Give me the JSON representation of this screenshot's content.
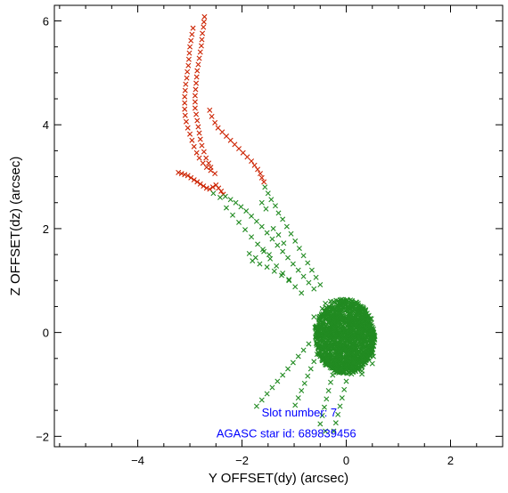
{
  "chart_data": {
    "type": "scatter",
    "title": "",
    "xlabel": "Y OFFSET(dy) (arcsec)",
    "ylabel": "Z OFFSET(dz) (arcsec)",
    "xlim": [
      -5.6,
      3.0
    ],
    "ylim": [
      -2.2,
      6.3
    ],
    "x_ticks": [
      -4,
      -2,
      0,
      2
    ],
    "y_ticks": [
      -2,
      0,
      2,
      4,
      6
    ],
    "marker": "x",
    "grid": false,
    "annotations": [
      {
        "text": "Slot number: 7",
        "x": -0.9,
        "y": -1.62
      },
      {
        "text": "AGASC star id: 689839456",
        "x": -1.15,
        "y": -2.02
      }
    ],
    "series": [
      {
        "color": "#cc2200",
        "points": [
          [
            -2.72,
            6.08
          ],
          [
            -2.73,
            5.98
          ],
          [
            -2.74,
            5.88
          ],
          [
            -2.76,
            5.76
          ],
          [
            -2.77,
            5.64
          ],
          [
            -2.78,
            5.52
          ],
          [
            -2.8,
            5.4
          ],
          [
            -2.82,
            5.28
          ],
          [
            -2.84,
            5.16
          ],
          [
            -2.86,
            5.04
          ],
          [
            -2.87,
            4.92
          ],
          [
            -2.88,
            4.8
          ],
          [
            -2.89,
            4.68
          ],
          [
            -2.9,
            4.56
          ],
          [
            -2.9,
            4.44
          ],
          [
            -2.9,
            4.32
          ],
          [
            -2.88,
            4.2
          ],
          [
            -2.86,
            4.08
          ],
          [
            -2.84,
            3.96
          ],
          [
            -2.82,
            3.84
          ],
          [
            -2.8,
            3.72
          ],
          [
            -2.77,
            3.6
          ],
          [
            -2.73,
            3.48
          ],
          [
            -2.69,
            3.36
          ],
          [
            -2.64,
            3.26
          ],
          [
            -2.6,
            3.18
          ],
          [
            -2.94,
            5.86
          ],
          [
            -2.96,
            5.74
          ],
          [
            -2.98,
            5.62
          ],
          [
            -3.0,
            5.5
          ],
          [
            -3.01,
            5.38
          ],
          [
            -3.02,
            5.26
          ],
          [
            -3.03,
            5.14
          ],
          [
            -3.05,
            5.02
          ],
          [
            -3.06,
            4.9
          ],
          [
            -3.08,
            4.78
          ],
          [
            -3.09,
            4.66
          ],
          [
            -3.1,
            4.54
          ],
          [
            -3.1,
            4.42
          ],
          [
            -3.1,
            4.3
          ],
          [
            -3.09,
            4.18
          ],
          [
            -3.07,
            4.06
          ],
          [
            -3.04,
            3.94
          ],
          [
            -3.0,
            3.82
          ],
          [
            -2.96,
            3.7
          ],
          [
            -2.92,
            3.58
          ],
          [
            -2.87,
            3.46
          ],
          [
            -2.82,
            3.36
          ],
          [
            -2.75,
            3.26
          ],
          [
            -2.68,
            3.18
          ],
          [
            -2.6,
            3.12
          ],
          [
            -2.52,
            3.06
          ],
          [
            -2.62,
            4.28
          ],
          [
            -2.58,
            4.16
          ],
          [
            -2.52,
            4.04
          ],
          [
            -2.46,
            3.94
          ],
          [
            -2.38,
            3.86
          ],
          [
            -2.3,
            3.78
          ],
          [
            -2.22,
            3.7
          ],
          [
            -2.14,
            3.62
          ],
          [
            -2.06,
            3.54
          ],
          [
            -1.98,
            3.46
          ],
          [
            -1.9,
            3.38
          ],
          [
            -1.82,
            3.3
          ],
          [
            -1.76,
            3.22
          ],
          [
            -1.7,
            3.14
          ],
          [
            -1.65,
            3.06
          ],
          [
            -1.62,
            2.98
          ],
          [
            -1.58,
            2.9
          ],
          [
            -3.22,
            3.08
          ],
          [
            -3.16,
            3.06
          ],
          [
            -3.1,
            3.04
          ],
          [
            -3.04,
            3.02
          ],
          [
            -2.98,
            2.98
          ],
          [
            -2.92,
            2.94
          ],
          [
            -2.86,
            2.9
          ],
          [
            -2.8,
            2.86
          ],
          [
            -2.74,
            2.82
          ],
          [
            -2.68,
            2.78
          ],
          [
            -2.62,
            2.76
          ],
          [
            -2.56,
            2.8
          ],
          [
            -2.5,
            2.84
          ],
          [
            -2.45,
            2.78
          ],
          [
            -2.4,
            2.72
          ],
          [
            -2.36,
            2.66
          ]
        ]
      },
      {
        "color": "#228b22",
        "points": [
          [
            -2.32,
            2.62
          ],
          [
            -2.22,
            2.56
          ],
          [
            -2.12,
            2.5
          ],
          [
            -2.02,
            2.42
          ],
          [
            -1.92,
            2.34
          ],
          [
            -1.82,
            2.24
          ],
          [
            -1.72,
            2.14
          ],
          [
            -1.62,
            2.04
          ],
          [
            -1.52,
            1.92
          ],
          [
            -1.42,
            1.8
          ],
          [
            -1.32,
            1.68
          ],
          [
            -1.22,
            1.56
          ],
          [
            -1.12,
            1.44
          ],
          [
            -1.02,
            1.32
          ],
          [
            -0.92,
            1.2
          ],
          [
            -0.82,
            1.08
          ],
          [
            -0.72,
            0.96
          ],
          [
            -0.62,
            0.84
          ],
          [
            -2.55,
            2.68
          ],
          [
            -2.42,
            2.6
          ],
          [
            -2.3,
            2.4
          ],
          [
            -2.18,
            2.26
          ],
          [
            -2.06,
            2.12
          ],
          [
            -1.94,
            1.98
          ],
          [
            -1.82,
            1.84
          ],
          [
            -1.7,
            1.7
          ],
          [
            -1.58,
            1.56
          ],
          [
            -1.46,
            1.42
          ],
          [
            -1.34,
            1.28
          ],
          [
            -1.22,
            1.14
          ],
          [
            -1.1,
            1.0
          ],
          [
            -0.98,
            0.88
          ],
          [
            -0.86,
            0.76
          ],
          [
            -1.56,
            2.8
          ],
          [
            -1.5,
            2.68
          ],
          [
            -1.44,
            2.56
          ],
          [
            -1.36,
            2.44
          ],
          [
            -1.3,
            2.3
          ],
          [
            -1.22,
            2.18
          ],
          [
            -1.14,
            2.04
          ],
          [
            -1.06,
            1.9
          ],
          [
            -0.98,
            1.76
          ],
          [
            -0.9,
            1.62
          ],
          [
            -0.82,
            1.48
          ],
          [
            -0.74,
            1.34
          ],
          [
            -0.66,
            1.2
          ],
          [
            -0.58,
            1.06
          ],
          [
            -0.5,
            0.92
          ],
          [
            -1.8,
            1.38
          ],
          [
            -1.66,
            1.32
          ],
          [
            -1.52,
            1.26
          ],
          [
            -1.38,
            1.18
          ],
          [
            -1.24,
            1.1
          ],
          [
            -1.1,
            1.02
          ],
          [
            -1.62,
            2.5
          ],
          [
            -1.54,
            2.38
          ],
          [
            -1.4,
            2.0
          ],
          [
            -1.3,
            1.88
          ],
          [
            -1.2,
            1.72
          ],
          [
            -1.86,
            1.52
          ],
          [
            -1.74,
            1.44
          ],
          [
            -1.6,
            1.6
          ],
          [
            -1.48,
            1.5
          ],
          [
            -0.98,
            -1.4
          ],
          [
            -0.92,
            -1.26
          ],
          [
            -0.86,
            -1.12
          ],
          [
            -0.8,
            -0.98
          ],
          [
            -0.74,
            -0.84
          ],
          [
            -0.68,
            -0.7
          ],
          [
            -0.62,
            -0.56
          ],
          [
            -0.56,
            -0.42
          ],
          [
            -0.5,
            -0.28
          ],
          [
            -1.72,
            -1.42
          ],
          [
            -1.62,
            -1.3
          ],
          [
            -1.52,
            -1.18
          ],
          [
            -1.42,
            -1.06
          ],
          [
            -1.32,
            -0.94
          ],
          [
            -1.22,
            -0.82
          ],
          [
            -1.12,
            -0.7
          ],
          [
            -1.02,
            -0.58
          ],
          [
            -0.92,
            -0.46
          ],
          [
            -0.82,
            -0.34
          ],
          [
            -0.72,
            -0.22
          ],
          [
            -0.5,
            -1.76
          ],
          [
            -0.46,
            -1.6
          ],
          [
            -0.42,
            -1.44
          ],
          [
            -0.38,
            -1.28
          ],
          [
            -0.34,
            -1.12
          ],
          [
            -0.3,
            -0.96
          ],
          [
            -0.26,
            -0.82
          ],
          [
            -0.22,
            -0.68
          ],
          [
            -0.4,
            -1.9
          ],
          [
            -0.24,
            -1.9
          ],
          [
            -0.2,
            -1.74
          ],
          [
            -0.16,
            -1.58
          ],
          [
            -0.12,
            -1.42
          ],
          [
            -0.08,
            -1.26
          ],
          [
            -0.04,
            -1.1
          ],
          [
            0.0,
            -0.94
          ],
          [
            -0.62,
            0.3
          ],
          [
            -0.6,
            0.1
          ],
          [
            -0.58,
            -0.1
          ],
          [
            -0.54,
            -0.3
          ],
          [
            -0.5,
            -0.46
          ],
          [
            -0.46,
            0.46
          ],
          [
            -0.4,
            0.56
          ],
          [
            -0.3,
            0.6
          ],
          [
            0.0,
            0.62
          ],
          [
            0.2,
            0.55
          ],
          [
            0.34,
            0.4
          ],
          [
            0.4,
            0.2
          ],
          [
            0.46,
            0.0
          ],
          [
            0.46,
            -0.2
          ],
          [
            0.42,
            -0.4
          ],
          [
            0.5,
            -0.6
          ],
          [
            0.3,
            -0.74
          ],
          [
            0.1,
            -0.8
          ],
          [
            -0.1,
            -0.76
          ],
          [
            -0.3,
            -0.62
          ],
          [
            0.1,
            -0.4
          ],
          [
            0.3,
            -0.8
          ],
          [
            0.52,
            -0.46
          ]
        ],
        "cloud": {
          "center": [
            -0.05,
            0.0
          ],
          "x_range": [
            -0.6,
            0.55
          ],
          "y_range": [
            -0.8,
            0.65
          ],
          "count": 1400
        }
      }
    ]
  }
}
